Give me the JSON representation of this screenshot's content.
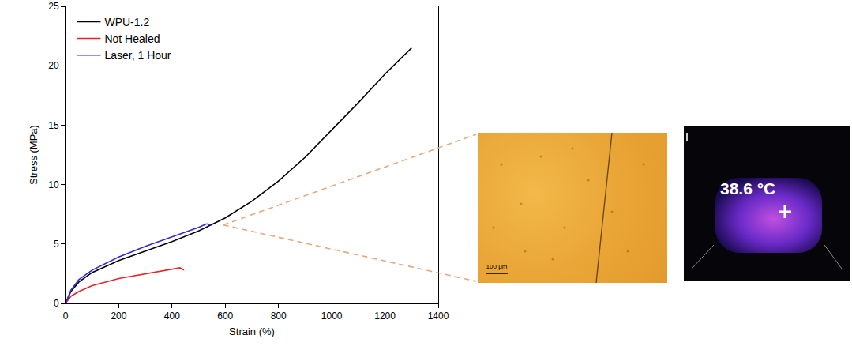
{
  "chart_data": {
    "type": "line",
    "x_label": "Strain (%)",
    "y_label": "Stress (MPa)",
    "xlim": [
      0,
      1400
    ],
    "xticks": [
      0,
      200,
      400,
      600,
      800,
      1000,
      1200,
      1400
    ],
    "ylim": [
      0,
      25
    ],
    "yticks": [
      0,
      5,
      10,
      15,
      20,
      25
    ],
    "grid": false,
    "legend": "top-left",
    "series": [
      {
        "name": "WPU-1.2",
        "color": "#000000",
        "x": [
          0,
          20,
          50,
          100,
          200,
          300,
          400,
          500,
          600,
          700,
          800,
          900,
          1000,
          1100,
          1200,
          1300
        ],
        "values": [
          0,
          1.0,
          1.8,
          2.6,
          3.6,
          4.4,
          5.2,
          6.1,
          7.2,
          8.6,
          10.3,
          12.3,
          14.6,
          16.9,
          19.3,
          21.5
        ]
      },
      {
        "name": "Not Healed",
        "color": "#e8232a",
        "x": [
          0,
          20,
          50,
          100,
          200,
          300,
          400,
          430,
          445
        ],
        "values": [
          0,
          0.6,
          1.0,
          1.5,
          2.1,
          2.5,
          2.9,
          3.0,
          2.8
        ]
      },
      {
        "name": "Laser, 1 Hour",
        "color": "#2a2ae0",
        "x": [
          0,
          20,
          50,
          100,
          200,
          300,
          400,
          500,
          530,
          545
        ],
        "values": [
          0,
          1.1,
          2.0,
          2.8,
          3.9,
          4.8,
          5.6,
          6.4,
          6.7,
          6.6
        ]
      }
    ],
    "annotations": [
      "100 μm",
      "38.6 °C"
    ]
  }
}
